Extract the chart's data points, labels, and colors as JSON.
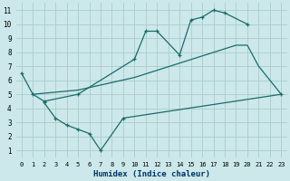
{
  "background_color": "#cce8ea",
  "grid_color": "#aacccc",
  "line_color": "#1a6b6b",
  "xlabel": "Humidex (Indice chaleur)",
  "xlim": [
    -0.5,
    23.5
  ],
  "ylim": [
    0.5,
    11.5
  ],
  "yticks": [
    1,
    2,
    3,
    4,
    5,
    6,
    7,
    8,
    9,
    10,
    11
  ],
  "xticks": [
    0,
    1,
    2,
    3,
    4,
    5,
    6,
    7,
    8,
    9,
    10,
    11,
    12,
    13,
    14,
    15,
    16,
    17,
    18,
    19,
    20,
    21,
    22,
    23
  ],
  "series1_x": [
    0,
    1,
    2,
    5,
    10,
    11,
    12,
    14,
    15,
    16,
    17,
    18,
    20
  ],
  "series1_y": [
    6.5,
    5.0,
    4.5,
    5.0,
    7.5,
    9.5,
    9.5,
    7.8,
    10.3,
    10.5,
    11.0,
    10.8,
    10.0
  ],
  "series2_x": [
    1,
    5,
    10,
    19,
    20,
    21,
    22,
    23
  ],
  "series2_y": [
    5.0,
    5.3,
    6.2,
    8.5,
    8.5,
    7.0,
    6.0,
    5.0
  ],
  "series3_x": [
    2,
    3,
    4,
    5,
    6,
    7,
    9,
    23
  ],
  "series3_y": [
    4.4,
    3.3,
    2.8,
    2.5,
    2.2,
    1.0,
    3.3,
    5.0
  ],
  "xlabel_color": "#003366",
  "xlabel_fontsize": 6.5,
  "tick_fontsize": 5.0
}
